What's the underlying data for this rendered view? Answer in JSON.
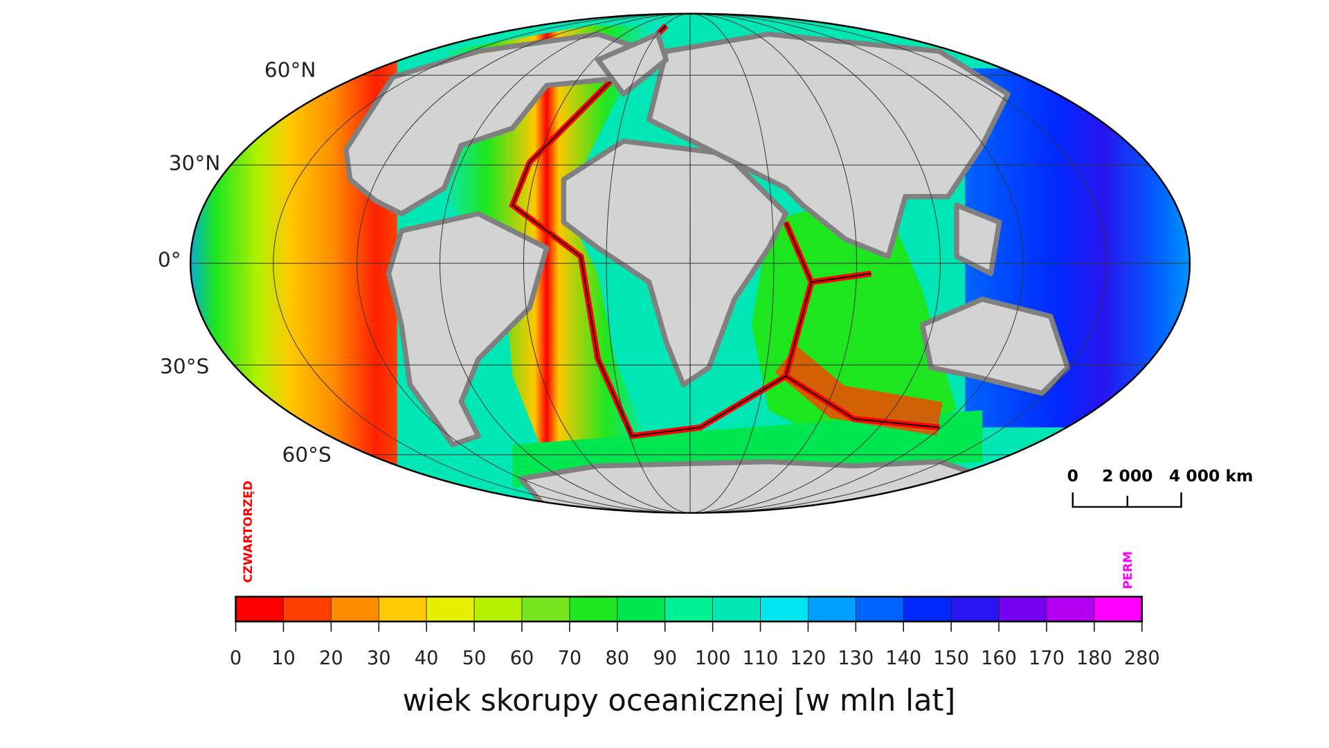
{
  "map": {
    "latitude_labels": [
      "60°N",
      "30°N",
      "0°",
      "30°S",
      "60°S"
    ],
    "scale_bar": [
      "0",
      "2 000",
      "4 000 km"
    ]
  },
  "legend": {
    "title": "wiek skorupy oceanicznej [w mln lat]",
    "ticks": [
      0,
      10,
      20,
      30,
      40,
      50,
      60,
      70,
      80,
      90,
      100,
      110,
      120,
      130,
      140,
      150,
      160,
      170,
      180,
      280
    ],
    "colors": [
      "#ff0000",
      "#ff4000",
      "#ff8c00",
      "#ffc800",
      "#e6f000",
      "#b4f000",
      "#78e61e",
      "#1ee61e",
      "#00e650",
      "#00f096",
      "#00e6b4",
      "#00e6f0",
      "#00a0ff",
      "#0064ff",
      "#0028ff",
      "#2814f0",
      "#7800f0",
      "#b400f0",
      "#ff00ff"
    ],
    "start_label": "CZWARTORZĘD",
    "end_label": "PERM"
  }
}
